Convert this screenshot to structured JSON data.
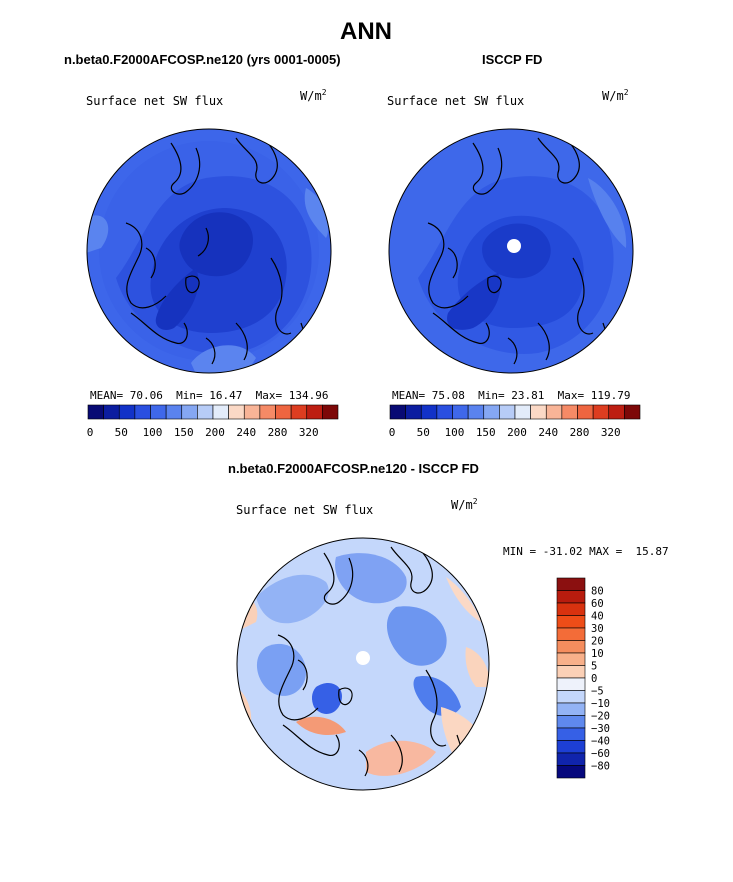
{
  "figure": {
    "title": "ANN",
    "panel_left_title": "n.beta0.F2000AFCOSP.ne120 (yrs 0001-0005)",
    "panel_right_title": "ISCCP FD",
    "panel_bottom_title": "n.beta0.F2000AFCOSP.ne120 - ISCCP FD"
  },
  "colors": {
    "dark_blue": "#08089a",
    "mid_blue": "#2a4fe0",
    "light_blue": "#7fa5f2",
    "very_light_blue": "#c4d7fb",
    "near_white": "#eef2fb",
    "peach": "#f9d0b8",
    "orange": "#f37c4a",
    "dark_red": "#8b1010"
  },
  "chart_data": [
    {
      "type": "heatmap",
      "projection": "north polar stereographic",
      "variable": "Surface net SW flux",
      "units_base": "W/m",
      "units_exp": "2",
      "stats": {
        "mean_label": "MEAN=",
        "mean": "70.06",
        "min_label": "Min=",
        "min": "16.47",
        "max_label": "Max=",
        "max": "134.96"
      },
      "colorbar_ticks": [
        "0",
        "50",
        "100",
        "150",
        "200",
        "240",
        "280",
        "320"
      ],
      "colorbar_colors": [
        "#080a74",
        "#0b1da0",
        "#1232c8",
        "#2a4fe0",
        "#3f68ea",
        "#5a83ef",
        "#85a7f3",
        "#b7ccf7",
        "#e3ecfa",
        "#fbd9c6",
        "#f8b497",
        "#f58a66",
        "#ee6540",
        "#dd3d20",
        "#bd1e12",
        "#7d0808"
      ]
    },
    {
      "type": "heatmap",
      "projection": "north polar stereographic",
      "variable": "Surface net SW flux",
      "units_base": "W/m",
      "units_exp": "2",
      "stats": {
        "mean_label": "MEAN=",
        "mean": "75.08",
        "min_label": "Min=",
        "min": "23.81",
        "max_label": "Max=",
        "max": "119.79"
      },
      "colorbar_ticks": [
        "0",
        "50",
        "100",
        "150",
        "200",
        "240",
        "280",
        "320"
      ],
      "colorbar_colors": [
        "#080a74",
        "#0b1da0",
        "#1232c8",
        "#2a4fe0",
        "#3f68ea",
        "#5a83ef",
        "#85a7f3",
        "#b7ccf7",
        "#e3ecfa",
        "#fbd9c6",
        "#f8b497",
        "#f58a66",
        "#ee6540",
        "#dd3d20",
        "#bd1e12",
        "#7d0808"
      ]
    },
    {
      "type": "heatmap",
      "projection": "north polar stereographic",
      "variable": "Surface net SW flux",
      "units_base": "W/m",
      "units_exp": "2",
      "stats": {
        "min_label": "MIN =",
        "min": "-31.02",
        "max_label": "MAX =",
        "max": "15.87"
      },
      "colorbar_ticks": [
        "80",
        "60",
        "40",
        "30",
        "20",
        "10",
        "5",
        "0",
        "−5",
        "−10",
        "−20",
        "−30",
        "−40",
        "−60",
        "−80"
      ],
      "colorbar_colors": [
        "#8b1010",
        "#b81c0e",
        "#d8320f",
        "#ee4d18",
        "#f36c38",
        "#f58d5e",
        "#f8b08a",
        "#fbd0b6",
        "#eef2fb",
        "#c4d7fb",
        "#93b3f5",
        "#5f89ee",
        "#3660e6",
        "#1d3fd4",
        "#1024ac",
        "#06087d"
      ]
    }
  ]
}
